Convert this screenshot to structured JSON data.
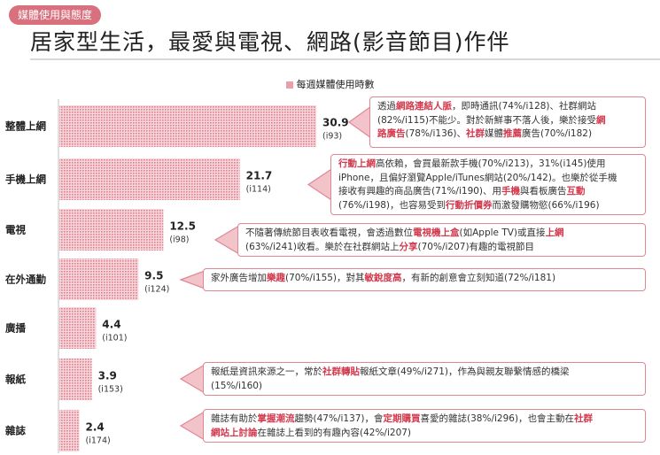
{
  "header": {
    "tag": "媒體使用與態度",
    "title": "居家型生活，最愛與電視、網路(影音節目)作伴"
  },
  "chart_data": {
    "type": "bar",
    "orientation": "horizontal",
    "legend": "每週媒體使用時數",
    "legend_position": "top-center",
    "categories": [
      "整體上網",
      "手機上網",
      "電視",
      "在外通勤",
      "廣播",
      "報紙",
      "雜誌"
    ],
    "values": [
      30.9,
      21.7,
      12.5,
      9.5,
      4.4,
      3.9,
      2.4
    ],
    "value_labels": [
      "30.9",
      "21.7",
      "12.5",
      "9.5",
      "4.4",
      "3.9",
      "2.4"
    ],
    "index_labels": [
      "(i93)",
      "(i114)",
      "(i98)",
      "(i124)",
      "(i101)",
      "(i153)",
      "(i174)"
    ],
    "xlim": [
      0,
      30.9
    ],
    "bar_color": "#e9a0ab",
    "grid": false
  },
  "callouts": [
    {
      "row": 0,
      "lines": [
        [
          {
            "t": "透過"
          },
          {
            "t": "網路連結人脈",
            "h": 1
          },
          {
            "t": "，即時通訊(74%/i128)、社群網站"
          }
        ],
        [
          {
            "t": "(82%/i115)不能少。對於新鮮事不落人後，樂於接受"
          },
          {
            "t": "網",
            "h": 1
          }
        ],
        [
          {
            "t": "路廣告",
            "h": 1
          },
          {
            "t": "(78%/i136)、"
          },
          {
            "t": "社群",
            "h": 1
          },
          {
            "t": "媒體"
          },
          {
            "t": "推薦",
            "h": 1
          },
          {
            "t": "廣告(70%/i182)"
          }
        ]
      ]
    },
    {
      "row": 1,
      "lines": [
        [
          {
            "t": "行動上網",
            "h": 1
          },
          {
            "t": "高依賴，會買最新款手機(70%/i213)，31%(i145)使用"
          }
        ],
        [
          {
            "t": "iPhone，且偏好瀏覽Apple/iTunes網站(20%/142)。也樂於從手機"
          }
        ],
        [
          {
            "t": "接收有興趣的商品廣告(71%/i190)、用"
          },
          {
            "t": "手機",
            "h": 1
          },
          {
            "t": "與看板廣告"
          },
          {
            "t": "互動",
            "h": 1
          }
        ],
        [
          {
            "t": "(76%/i198)，也容易受到"
          },
          {
            "t": "行動折價券",
            "h": 1
          },
          {
            "t": "而激發購物慾(66%/i196)"
          }
        ]
      ]
    },
    {
      "row": 2,
      "lines": [
        [
          {
            "t": "不隨著傳統節目表收看電視，會透過數位"
          },
          {
            "t": "電視機上盒",
            "h": 1
          },
          {
            "t": "(如Apple TV)或直接"
          },
          {
            "t": "上網",
            "h": 1
          }
        ],
        [
          {
            "t": "(63%/i241)收看。樂於在社群網站上"
          },
          {
            "t": "分享",
            "h": 1
          },
          {
            "t": "(70%/i207)有趣的電視節目"
          }
        ]
      ]
    },
    {
      "row": 3,
      "lines": [
        [
          {
            "t": "家外廣告增加"
          },
          {
            "t": "樂趣",
            "h": 1
          },
          {
            "t": "(70%/i155)，對其"
          },
          {
            "t": "敏銳度高",
            "h": 1
          },
          {
            "t": "，有新的創意會立刻知道(72%/i181)"
          }
        ]
      ]
    },
    {
      "row": 5,
      "lines": [
        [
          {
            "t": "報紙是資訊來源之一，常於"
          },
          {
            "t": "社群轉貼",
            "h": 1
          },
          {
            "t": "報紙文章(49%/i271)，作為與親友聯繫情感的橋梁"
          }
        ],
        [
          {
            "t": "(15%/i160)"
          }
        ]
      ]
    },
    {
      "row": 6,
      "lines": [
        [
          {
            "t": "雜誌有助於"
          },
          {
            "t": "掌握潮流",
            "h": 1
          },
          {
            "t": "趨勢(47%/i137)，會"
          },
          {
            "t": "定期購買",
            "h": 1
          },
          {
            "t": "喜愛的雜誌(38%/i296)，也會主動在"
          },
          {
            "t": "社群",
            "h": 1
          }
        ],
        [
          {
            "t": "網站上討論",
            "h": 1
          },
          {
            "t": "在雜誌上看到的有趣內容(42%/i207)"
          }
        ]
      ]
    }
  ]
}
